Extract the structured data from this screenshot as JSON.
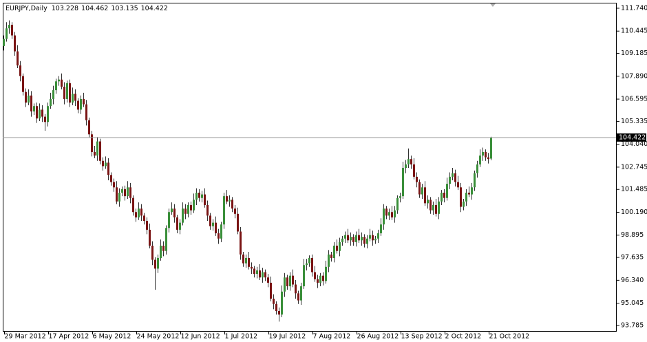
{
  "chart_data": {
    "type": "candlestick",
    "title": "EURJPY,Daily",
    "up_color": "#3a8f3a",
    "down_color": "#7a1414",
    "wick_color": "#333333",
    "price_line": true,
    "ylim": [
      93.47,
      112.05
    ],
    "yticks": [
      {
        "value": 111.74,
        "label": "111.740"
      },
      110.445,
      109.185,
      {
        "value": 107.89,
        "label": "107.890"
      },
      106.595,
      105.335,
      {
        "value": 104.04,
        "label": "104.040"
      },
      102.745,
      101.485,
      {
        "value": 100.19,
        "label": "100.190"
      },
      98.895,
      97.635,
      {
        "value": 96.34,
        "label": "96.340"
      },
      95.045,
      93.785
    ],
    "xticks": [
      {
        "value": 0,
        "label": "29 Mar 2012"
      },
      {
        "value": 16,
        "label": "17 Apr 2012"
      },
      {
        "value": 32,
        "label": "6 May 2012"
      },
      {
        "value": 48,
        "label": "24 May 2012"
      },
      {
        "value": 64,
        "label": "12 Jun 2012"
      },
      {
        "value": 80,
        "label": "1 Jul 2012"
      },
      {
        "value": 96,
        "label": "19 Jul 2012"
      },
      {
        "value": 112,
        "label": "7 Aug 2012"
      },
      {
        "value": 128,
        "label": "26 Aug 2012"
      },
      {
        "value": 144,
        "label": "13 Sep 2012"
      },
      {
        "value": 160,
        "label": "2 Oct 2012"
      },
      {
        "value": 176,
        "label": "21 Oct 2012"
      }
    ],
    "open": [
      109.6,
      110.0,
      110.6,
      110.8,
      110.2,
      109.3,
      108.5,
      107.9,
      107.0,
      106.4,
      106.8,
      105.9,
      106.2,
      105.5,
      106.0,
      105.6,
      105.3,
      106.2,
      106.6,
      107.1,
      107.6,
      107.7,
      107.3,
      106.6,
      107.5,
      106.4,
      106.9,
      106.5,
      106.0,
      106.6,
      106.3,
      105.4,
      104.6,
      103.6,
      103.4,
      104.2,
      103.1,
      102.8,
      103.0,
      102.3,
      101.9,
      101.6,
      100.8,
      101.3,
      101.5,
      101.1,
      101.6,
      101.0,
      100.2,
      99.9,
      100.4,
      100.0,
      99.7,
      99.2,
      98.3,
      97.5,
      97.0,
      97.6,
      98.3,
      98.0,
      99.3,
      100.2,
      100.4,
      99.9,
      99.2,
      99.6,
      100.4,
      100.1,
      100.6,
      100.3,
      100.9,
      101.3,
      101.0,
      101.2,
      100.6,
      100.0,
      99.4,
      99.6,
      99.0,
      98.7,
      99.5,
      101.1,
      100.8,
      100.9,
      100.4,
      100.1,
      99.1,
      97.8,
      97.3,
      97.6,
      97.1,
      97.0,
      96.7,
      96.9,
      96.5,
      96.8,
      96.5,
      96.2,
      95.3,
      95.0,
      94.6,
      94.4,
      95.7,
      96.5,
      96.0,
      96.6,
      96.1,
      95.6,
      95.2,
      96.0,
      97.2,
      97.3,
      97.6,
      96.8,
      96.4,
      96.2,
      96.6,
      96.3,
      97.1,
      97.8,
      97.6,
      98.3,
      98.0,
      98.5,
      98.7,
      98.9,
      98.6,
      98.8,
      98.5,
      98.9,
      98.6,
      98.8,
      98.4,
      98.7,
      98.9,
      98.6,
      98.7,
      99.0,
      99.5,
      100.4,
      100.0,
      100.2,
      99.9,
      100.3,
      101.0,
      101.1,
      102.7,
      102.9,
      103.2,
      102.9,
      102.2,
      101.9,
      101.2,
      101.6,
      100.7,
      100.9,
      100.3,
      100.6,
      100.1,
      100.8,
      101.3,
      101.0,
      101.8,
      102.2,
      102.4,
      101.9,
      101.6,
      100.5,
      100.8,
      101.3,
      101.2,
      101.6,
      102.4,
      102.9,
      103.4,
      103.6,
      103.3,
      103.228
    ],
    "high": [
      110.2,
      110.95,
      111.05,
      110.95,
      110.4,
      109.65,
      108.75,
      108.05,
      107.2,
      107.15,
      107.05,
      106.35,
      106.4,
      106.35,
      106.25,
      105.75,
      106.4,
      106.95,
      107.35,
      107.75,
      107.9,
      108.05,
      107.55,
      107.65,
      107.7,
      107.25,
      107.15,
      106.65,
      106.8,
      106.95,
      106.55,
      105.55,
      104.8,
      103.95,
      104.45,
      104.35,
      103.3,
      103.35,
      103.25,
      102.45,
      102.1,
      101.95,
      101.55,
      101.65,
      101.7,
      101.95,
      101.85,
      101.15,
      100.4,
      100.75,
      100.65,
      100.15,
      99.9,
      99.55,
      98.55,
      97.65,
      97.8,
      98.65,
      98.55,
      99.45,
      100.4,
      100.75,
      100.65,
      100.05,
      99.8,
      100.75,
      100.65,
      100.75,
      100.8,
      101.25,
      101.55,
      101.5,
      101.4,
      101.55,
      100.85,
      100.15,
      99.8,
      99.95,
      99.25,
      99.65,
      101.3,
      101.45,
      101.15,
      101.05,
      100.6,
      100.45,
      99.35,
      97.95,
      97.8,
      97.95,
      97.35,
      97.15,
      97.1,
      97.25,
      97.05,
      96.95,
      96.7,
      96.55,
      95.55,
      95.15,
      94.8,
      96.05,
      96.75,
      96.65,
      96.8,
      96.95,
      96.35,
      95.75,
      96.2,
      97.55,
      97.55,
      97.75,
      97.8,
      97.15,
      96.65,
      96.75,
      96.8,
      97.45,
      98.05,
      97.95,
      98.5,
      98.65,
      98.75,
      98.85,
      99.1,
      99.25,
      99.05,
      98.95,
      99.1,
      99.25,
      99.05,
      98.95,
      98.9,
      99.25,
      99.15,
      98.85,
      99.2,
      99.85,
      100.65,
      100.55,
      100.4,
      100.55,
      100.55,
      101.15,
      101.3,
      103.05,
      103.15,
      103.8,
      103.4,
      103.25,
      102.45,
      102.05,
      101.8,
      101.95,
      101.15,
      101.05,
      100.8,
      100.95,
      101.05,
      101.45,
      101.5,
      102.15,
      102.45,
      102.7,
      102.6,
      102.25,
      101.85,
      100.95,
      101.5,
      101.65,
      101.85,
      102.55,
      103.1,
      103.75,
      103.85,
      103.75,
      103.55,
      104.462
    ],
    "low": [
      109.35,
      109.85,
      110.3,
      110.0,
      109.05,
      108.35,
      107.6,
      106.8,
      106.15,
      106.25,
      105.6,
      105.7,
      105.25,
      105.35,
      105.3,
      104.8,
      105.05,
      106.05,
      106.3,
      106.9,
      107.35,
      107.15,
      106.3,
      106.4,
      106.15,
      106.25,
      106.2,
      105.8,
      105.75,
      106.15,
      105.1,
      104.4,
      103.35,
      103.25,
      103.1,
      102.9,
      102.55,
      102.65,
      102.0,
      101.7,
      101.35,
      100.65,
      100.5,
      101.1,
      100.85,
      100.95,
      100.7,
      100.0,
      99.65,
      99.75,
      99.7,
      99.5,
      98.95,
      98.15,
      97.2,
      95.8,
      96.75,
      97.45,
      97.7,
      97.8,
      99.05,
      100.05,
      99.6,
      99.0,
      98.95,
      99.45,
      99.8,
      99.9,
      100.05,
      100.15,
      100.6,
      100.8,
      100.75,
      100.45,
      99.7,
      99.2,
      99.15,
      98.85,
      98.4,
      98.5,
      99.25,
      100.65,
      100.5,
      100.2,
      99.85,
      98.95,
      97.5,
      97.1,
      97.05,
      96.95,
      96.7,
      96.5,
      96.45,
      96.35,
      96.2,
      96.3,
      95.95,
      95.15,
      94.7,
      94.4,
      94.0,
      94.25,
      95.4,
      95.8,
      95.75,
      95.95,
      95.3,
      95.0,
      94.95,
      95.85,
      96.9,
      97.1,
      96.55,
      96.25,
      95.9,
      96.0,
      96.05,
      96.15,
      96.8,
      97.4,
      97.35,
      97.85,
      97.7,
      98.3,
      98.45,
      98.45,
      98.3,
      98.3,
      98.25,
      98.45,
      98.3,
      98.2,
      98.15,
      98.55,
      98.3,
      98.4,
      98.45,
      98.85,
      99.2,
      99.8,
      99.75,
      99.75,
      99.6,
      100.1,
      100.75,
      100.95,
      102.4,
      102.7,
      102.65,
      102.05,
      101.6,
      101.0,
      100.95,
      100.55,
      100.4,
      100.1,
      100.05,
      99.95,
      99.8,
      100.6,
      100.75,
      100.85,
      101.5,
      102.0,
      101.65,
      101.45,
      100.2,
      100.3,
      100.55,
      101.05,
      100.9,
      101.4,
      102.15,
      102.75,
      103.1,
      103.1,
      102.95,
      103.135
    ],
    "close": [
      110.0,
      110.6,
      110.8,
      110.2,
      109.3,
      108.5,
      107.9,
      107.0,
      106.4,
      106.8,
      105.9,
      106.2,
      105.5,
      106.0,
      105.6,
      105.3,
      106.2,
      106.6,
      107.1,
      107.6,
      107.7,
      107.3,
      106.6,
      107.5,
      106.4,
      106.9,
      106.5,
      106.0,
      106.6,
      106.3,
      105.4,
      104.6,
      103.6,
      103.4,
      104.2,
      103.1,
      102.8,
      103.0,
      102.3,
      101.9,
      101.6,
      100.8,
      101.3,
      101.5,
      101.1,
      101.6,
      101.0,
      100.2,
      99.9,
      100.4,
      100.0,
      99.7,
      99.2,
      98.3,
      97.5,
      97.0,
      97.6,
      98.3,
      98.0,
      99.3,
      100.2,
      100.4,
      99.9,
      99.2,
      99.6,
      100.4,
      100.1,
      100.6,
      100.3,
      100.9,
      101.3,
      101.0,
      101.2,
      100.6,
      100.0,
      99.4,
      99.6,
      99.0,
      98.7,
      99.5,
      101.1,
      100.8,
      100.9,
      100.4,
      100.1,
      99.1,
      97.8,
      97.3,
      97.6,
      97.1,
      97.0,
      96.7,
      96.9,
      96.5,
      96.8,
      96.5,
      96.2,
      95.3,
      95.0,
      94.6,
      94.4,
      95.7,
      96.5,
      96.0,
      96.6,
      96.1,
      95.6,
      95.2,
      96.0,
      97.2,
      97.3,
      97.6,
      96.8,
      96.4,
      96.2,
      96.6,
      96.3,
      97.1,
      97.8,
      97.6,
      98.3,
      98.0,
      98.5,
      98.7,
      98.9,
      98.6,
      98.8,
      98.5,
      98.9,
      98.6,
      98.8,
      98.4,
      98.7,
      98.9,
      98.6,
      98.7,
      99.0,
      99.5,
      100.4,
      100.0,
      100.2,
      99.9,
      100.3,
      101.0,
      101.1,
      102.7,
      102.9,
      103.2,
      102.9,
      102.2,
      101.9,
      101.2,
      101.6,
      100.7,
      100.9,
      100.3,
      100.6,
      100.1,
      100.8,
      101.3,
      101.0,
      101.8,
      102.2,
      102.4,
      101.9,
      101.6,
      100.5,
      100.8,
      101.3,
      101.2,
      101.6,
      102.4,
      102.9,
      103.4,
      103.6,
      103.3,
      103.2,
      104.422
    ]
  }
}
